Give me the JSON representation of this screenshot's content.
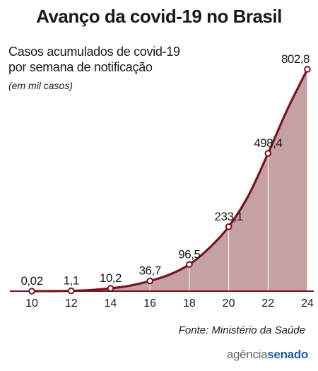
{
  "title": "Avanço da covid-19 no Brasil",
  "subtitle_line1": "Casos acumulados de covid-19",
  "subtitle_line2": "por semana de notificação",
  "unit_note": "(em mil casos)",
  "source": "Fonte: Ministério da Saúde",
  "logo": {
    "part1": "agência",
    "part2": "senado"
  },
  "colors": {
    "line": "#7a1420",
    "fill": "#c4a1a3",
    "dropline": "#ffffff",
    "text": "#1a1a1a"
  },
  "chart_data": {
    "type": "area",
    "xlabel": "",
    "ylabel": "",
    "x": [
      10,
      11,
      12,
      13,
      14,
      15,
      16,
      17,
      18,
      19,
      20,
      21,
      22,
      23,
      24
    ],
    "values": [
      0.02,
      0.3,
      1.1,
      4,
      10.2,
      20,
      36.7,
      60,
      96.5,
      155,
      233.1,
      345,
      498.4,
      660,
      802.8
    ],
    "xlim": [
      10,
      24
    ],
    "ylim": [
      0,
      802.8
    ],
    "x_ticks": [
      "10",
      "12",
      "14",
      "16",
      "18",
      "20",
      "22",
      "24"
    ],
    "markers": [
      {
        "x": 10,
        "value": 0.02,
        "label": "0,02"
      },
      {
        "x": 12,
        "value": 1.1,
        "label": "1,1"
      },
      {
        "x": 14,
        "value": 10.2,
        "label": "10,2"
      },
      {
        "x": 16,
        "value": 36.7,
        "label": "36,7"
      },
      {
        "x": 18,
        "value": 96.5,
        "label": "96,5"
      },
      {
        "x": 20,
        "value": 233.1,
        "label": "233,1"
      },
      {
        "x": 22,
        "value": 498.4,
        "label": "498,4"
      },
      {
        "x": 24,
        "value": 802.8,
        "label": "802,8"
      }
    ]
  }
}
